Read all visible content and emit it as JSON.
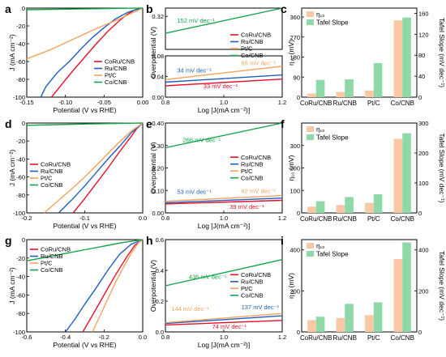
{
  "colors": {
    "CoRu/CNB": "#e8102a",
    "Ru/CNB": "#1f5fc0",
    "Pt/C": "#f3a25f",
    "Co/CNB": "#13a34a",
    "eta_bar": "#f9c9a6",
    "tafel_bar": "#8fd9a8"
  },
  "chart_data": [
    {
      "id": "a",
      "panel_label": "a",
      "type": "line",
      "xlabel": "Potential (V vs RHE)",
      "ylabel": "J (mA cm⁻²)",
      "xlim": [
        -0.15,
        0.0
      ],
      "ylim": [
        -100,
        0
      ],
      "xticks": [
        -0.15,
        -0.1,
        -0.05,
        0.0
      ],
      "xtick_labels": [
        "-0.15",
        "-0.10",
        "-0.05",
        "0.00"
      ],
      "yticks": [
        -100,
        -80,
        -60,
        -40,
        -20,
        0
      ],
      "ytick_labels": [
        "-100",
        "-80",
        "-60",
        "-40",
        "-20",
        "0"
      ],
      "legend": [
        "CoRu/CNB",
        "Ru/CNB",
        "Pt/C",
        "Co/CNB"
      ],
      "legend_position": "bottom-right",
      "series": [
        {
          "name": "CoRu/CNB",
          "x": [
            -0.118,
            -0.105,
            -0.09,
            -0.075,
            -0.06,
            -0.045,
            -0.03,
            -0.02,
            -0.01,
            0.0
          ],
          "y": [
            -100,
            -86,
            -70,
            -55,
            -40,
            -26,
            -14,
            -7,
            -2,
            0
          ]
        },
        {
          "name": "Ru/CNB",
          "x": [
            -0.132,
            -0.125,
            -0.11,
            -0.095,
            -0.08,
            -0.065,
            -0.05,
            -0.035,
            -0.02,
            -0.01,
            0.0
          ],
          "y": [
            -100,
            -88,
            -72,
            -60,
            -46,
            -33,
            -22,
            -12,
            -5,
            -2,
            0
          ]
        },
        {
          "name": "Pt/C",
          "x": [
            -0.15,
            -0.12,
            -0.09,
            -0.06,
            -0.03,
            -0.015,
            0.0
          ],
          "y": [
            -57,
            -47,
            -35,
            -23,
            -12,
            -6,
            0
          ]
        },
        {
          "name": "Co/CNB",
          "x": [
            -0.15,
            -0.1,
            -0.05,
            -0.02,
            0.0
          ],
          "y": [
            -1.8,
            -1.2,
            -0.6,
            -0.2,
            0
          ]
        }
      ]
    },
    {
      "id": "b",
      "panel_label": "b",
      "type": "line",
      "broken_axis": true,
      "xlabel": "Log [J(mA cm⁻²)]",
      "ylabel": "Overpotential (V)",
      "xlim": [
        0.8,
        1.2
      ],
      "ylim_lower": [
        0.0,
        0.08
      ],
      "ylim_upper": [
        0.24,
        0.34
      ],
      "xticks": [
        0.8,
        1.0,
        1.2
      ],
      "xtick_labels": [
        "0.8",
        "1.0",
        "1.2"
      ],
      "yticks_lower": [
        0.0,
        0.04,
        0.08
      ],
      "ytick_labels_lower": [
        "0.00",
        "0.04",
        "0.08"
      ],
      "yticks_upper": [
        0.32
      ],
      "ytick_labels_upper": [
        "0.32"
      ],
      "legend": [
        "CoRu/CNB",
        "Ru/CNB",
        "Pt/C",
        "Co/CNB"
      ],
      "legend_position": "right",
      "series": [
        {
          "name": "CoRu/CNB",
          "x": [
            0.8,
            1.2
          ],
          "y": [
            0.022,
            0.035
          ]
        },
        {
          "name": "Ru/CNB",
          "x": [
            0.8,
            1.2
          ],
          "y": [
            0.029,
            0.043
          ]
        },
        {
          "name": "Pt/C",
          "x": [
            0.8,
            1.2
          ],
          "y": [
            0.034,
            0.06
          ]
        },
        {
          "name": "Co/CNB",
          "x": [
            0.8,
            1.2
          ],
          "y": [
            0.279,
            0.34
          ]
        }
      ],
      "annotations": [
        {
          "text": "152 mV dec⁻¹",
          "series": "Co/CNB",
          "x": 0.84,
          "y": 0.305
        },
        {
          "text": "34 mV dec⁻¹",
          "series": "Ru/CNB",
          "x": 0.84,
          "y": 0.048
        },
        {
          "text": "65 mV dec⁻¹",
          "series": "Pt/C",
          "x": 1.06,
          "y": 0.062
        },
        {
          "text": "33 mV dec⁻¹",
          "series": "CoRu/CNB",
          "x": 0.93,
          "y": 0.017
        }
      ]
    },
    {
      "id": "c",
      "panel_label": "c",
      "type": "bar",
      "categories": [
        "CoRu/CNB",
        "Ru/CNB",
        "Pt/C",
        "Co/CNB"
      ],
      "ylabel": "η₁₀ (mV)",
      "y2label": "Tafel Slope (mV dec⁻¹)",
      "ylim": [
        0,
        400
      ],
      "yticks": [
        0,
        90,
        180,
        270,
        360
      ],
      "ytick_labels": [
        "0",
        "90",
        "180",
        "270",
        "360"
      ],
      "y2lim": [
        0,
        170
      ],
      "y2ticks": [
        0,
        40,
        80,
        120,
        160
      ],
      "y2tick_labels": [
        "0",
        "40",
        "80",
        "120",
        "160"
      ],
      "legend": [
        "η₁₀",
        "Tafel Slope"
      ],
      "legend_position": "top-left",
      "series": [
        {
          "name": "η₁₀",
          "axis": "left",
          "values": [
            17,
            23,
            30,
            345
          ]
        },
        {
          "name": "Tafel Slope",
          "axis": "right",
          "values": [
            33,
            34,
            65,
            152
          ]
        }
      ]
    },
    {
      "id": "d",
      "panel_label": "d",
      "type": "line",
      "xlabel": "Potential (V vs RHE)",
      "ylabel": "J (mA cm⁻²)",
      "xlim": [
        -0.2,
        0.0
      ],
      "ylim": [
        -100,
        0
      ],
      "xticks": [
        -0.2,
        -0.1,
        0.0
      ],
      "xtick_labels": [
        "-0.2",
        "-0.1",
        "0.0"
      ],
      "yticks": [
        -100,
        -80,
        -60,
        -40,
        -20,
        0
      ],
      "ytick_labels": [
        "-100",
        "-80",
        "-60",
        "-40",
        "-20",
        "0"
      ],
      "legend": [
        "CoRu/CNB",
        "Ru/CNB",
        "Pt/C",
        "Co/CNB"
      ],
      "legend_position": "bottom-left",
      "series": [
        {
          "name": "CoRu/CNB",
          "x": [
            -0.12,
            -0.1,
            -0.08,
            -0.06,
            -0.04,
            -0.02,
            -0.01,
            0.0
          ],
          "y": [
            -100,
            -84,
            -67,
            -50,
            -32,
            -15,
            -6,
            0
          ]
        },
        {
          "name": "Ru/CNB",
          "x": [
            -0.145,
            -0.12,
            -0.1,
            -0.08,
            -0.06,
            -0.04,
            -0.02,
            0.0
          ],
          "y": [
            -100,
            -84,
            -70,
            -55,
            -40,
            -26,
            -11,
            0
          ]
        },
        {
          "name": "Pt/C",
          "x": [
            -0.17,
            -0.145,
            -0.12,
            -0.1,
            -0.08,
            -0.06,
            -0.04,
            -0.02,
            0.0
          ],
          "y": [
            -100,
            -86,
            -72,
            -60,
            -47,
            -34,
            -21,
            -9,
            0
          ]
        },
        {
          "name": "Co/CNB",
          "x": [
            -0.2,
            -0.15,
            -0.1,
            -0.05,
            0.0
          ],
          "y": [
            -2.5,
            -1.8,
            -1.1,
            -0.5,
            0
          ]
        }
      ]
    },
    {
      "id": "e",
      "panel_label": "e",
      "type": "line",
      "xlabel": "Log [J(mA cm⁻²)]",
      "ylabel": "Overpotential (V)",
      "xlim": [
        0.8,
        1.2
      ],
      "ylim": [
        0.0,
        0.4
      ],
      "xticks": [
        0.8,
        1.0,
        1.2
      ],
      "xtick_labels": [
        "0.8",
        "1.0",
        "1.2"
      ],
      "yticks": [
        0.0,
        0.1,
        0.2,
        0.3,
        0.4
      ],
      "ytick_labels": [
        "0.00",
        "0.10",
        "0.20",
        "0.30",
        "0.40"
      ],
      "legend": [
        "CoRu/CNB",
        "Ru/CNB",
        "Pt/C",
        "Co/CNB"
      ],
      "legend_position": "right",
      "series": [
        {
          "name": "CoRu/CNB",
          "x": [
            0.8,
            1.2
          ],
          "y": [
            0.04,
            0.056
          ]
        },
        {
          "name": "Ru/CNB",
          "x": [
            0.8,
            1.2
          ],
          "y": [
            0.045,
            0.066
          ]
        },
        {
          "name": "Pt/C",
          "x": [
            0.8,
            1.2
          ],
          "y": [
            0.052,
            0.077
          ]
        },
        {
          "name": "Co/CNB",
          "x": [
            0.8,
            1.2
          ],
          "y": [
            0.29,
            0.4
          ]
        }
      ],
      "annotations": [
        {
          "text": "266 mV dec⁻¹",
          "series": "Co/CNB",
          "x": 0.86,
          "y": 0.315
        },
        {
          "text": "53 mV dec⁻¹",
          "series": "Ru/CNB",
          "x": 0.84,
          "y": 0.085
        },
        {
          "text": "62 mV dec⁻¹",
          "series": "Pt/C",
          "x": 1.06,
          "y": 0.088
        },
        {
          "text": "39 mV dec⁻¹",
          "series": "CoRu/CNB",
          "x": 1.02,
          "y": 0.018
        }
      ]
    },
    {
      "id": "f",
      "panel_label": "f",
      "type": "bar",
      "categories": [
        "CoRu/CNB",
        "Ru/CNB",
        "Pt/C",
        "Co/CNB"
      ],
      "ylabel": "η₁₀ (mV)",
      "y2label": "Tafel Slope (mV dec⁻¹)",
      "ylim": [
        0,
        400
      ],
      "yticks": [
        0,
        100,
        200,
        300
      ],
      "ytick_labels": [
        "0",
        "100",
        "200",
        "300"
      ],
      "y2lim": [
        0,
        300
      ],
      "y2ticks": [
        0,
        100,
        200,
        300
      ],
      "y2tick_labels": [
        "0",
        "100",
        "200",
        "300"
      ],
      "legend": [
        "η₁₀",
        "Tafel Slope"
      ],
      "legend_position": "top-left",
      "series": [
        {
          "name": "η₁₀",
          "axis": "left",
          "values": [
            28,
            35,
            45,
            330
          ]
        },
        {
          "name": "Tafel Slope",
          "axis": "right",
          "values": [
            39,
            53,
            62,
            266
          ]
        }
      ]
    },
    {
      "id": "g",
      "panel_label": "g",
      "type": "line",
      "xlabel": "Potential (V vs RHE)",
      "ylabel": "J (mA cm⁻²)",
      "xlim": [
        -0.6,
        0.0
      ],
      "ylim": [
        -100,
        0
      ],
      "xticks": [
        -0.6,
        -0.4,
        -0.2,
        0.0
      ],
      "xtick_labels": [
        "-0.6",
        "-0.4",
        "-0.2",
        "0.0"
      ],
      "yticks": [
        -100,
        -80,
        -60,
        -40,
        -20,
        0
      ],
      "ytick_labels": [
        "-100",
        "-80",
        "-60",
        "-40",
        "-20",
        "0"
      ],
      "legend": [
        "CoRu/CNB",
        "Ru/CNB",
        "Pt/C",
        "Co/CNB"
      ],
      "legend_position": "left",
      "series": [
        {
          "name": "CoRu/CNB",
          "x": [
            -0.31,
            -0.26,
            -0.2,
            -0.14,
            -0.08,
            -0.04,
            0.0
          ],
          "y": [
            -100,
            -82,
            -60,
            -38,
            -18,
            -6,
            0
          ]
        },
        {
          "name": "Ru/CNB",
          "x": [
            -0.4,
            -0.35,
            -0.3,
            -0.24,
            -0.18,
            -0.12,
            -0.06,
            0.0
          ],
          "y": [
            -100,
            -86,
            -70,
            -52,
            -33,
            -16,
            -5,
            0
          ]
        },
        {
          "name": "Pt/C",
          "x": [
            -0.26,
            -0.22,
            -0.18,
            -0.14,
            -0.1,
            -0.06,
            -0.02,
            0.0
          ],
          "y": [
            -100,
            -82,
            -64,
            -46,
            -30,
            -15,
            -3,
            0
          ]
        },
        {
          "name": "Co/CNB",
          "x": [
            -0.6,
            -0.5,
            -0.4,
            -0.3,
            -0.2,
            -0.1,
            0.0
          ],
          "y": [
            -23,
            -19,
            -15,
            -11,
            -7,
            -3,
            0
          ]
        }
      ]
    },
    {
      "id": "h",
      "panel_label": "h",
      "type": "line",
      "xlabel": "Log [J(mA cm⁻²)]",
      "ylabel": "Overpotential (V)",
      "xlim": [
        0.8,
        1.2
      ],
      "ylim": [
        0.0,
        0.6
      ],
      "xticks": [
        0.8,
        1.0,
        1.2
      ],
      "xtick_labels": [
        "0.8",
        "1.0",
        "1.2"
      ],
      "yticks": [
        0.0,
        0.2,
        0.4,
        0.6
      ],
      "ytick_labels": [
        "0.0",
        "0.2",
        "0.4",
        "0.6"
      ],
      "legend": [
        "CoRu/CNB",
        "Ru/CNB",
        "Pt/C",
        "Co/CNB"
      ],
      "legend_position": "right",
      "series": [
        {
          "name": "CoRu/CNB",
          "x": [
            0.8,
            1.2
          ],
          "y": [
            0.045,
            0.075
          ]
        },
        {
          "name": "Ru/CNB",
          "x": [
            0.8,
            1.2
          ],
          "y": [
            0.055,
            0.105
          ]
        },
        {
          "name": "Pt/C",
          "x": [
            0.8,
            1.2
          ],
          "y": [
            0.06,
            0.12
          ]
        },
        {
          "name": "Co/CNB",
          "x": [
            0.8,
            1.2
          ],
          "y": [
            0.3,
            0.47
          ]
        }
      ],
      "annotations": [
        {
          "text": "436 mV dec⁻¹",
          "series": "Co/CNB",
          "x": 0.88,
          "y": 0.345
        },
        {
          "text": "144 mV dec⁻¹",
          "series": "Pt/C",
          "x": 0.82,
          "y": 0.138
        },
        {
          "text": "137 mV dec⁻¹",
          "series": "Ru/CNB",
          "x": 1.06,
          "y": 0.148
        },
        {
          "text": "74 mV dec⁻¹",
          "series": "CoRu/CNB",
          "x": 0.96,
          "y": 0.02
        }
      ]
    },
    {
      "id": "i",
      "panel_label": "i",
      "type": "bar",
      "categories": [
        "CoRu/CNB",
        "Ru/CNB",
        "Pt/C",
        "Co/CNB"
      ],
      "ylabel": "η₁₀ (mV)",
      "y2label": "Tafel Slope (mV dec⁻¹)",
      "ylim": [
        0,
        450
      ],
      "yticks": [
        0,
        200,
        400
      ],
      "ytick_labels": [
        "0",
        "200",
        "400"
      ],
      "y2lim": [
        0,
        450
      ],
      "y2ticks": [
        0,
        200,
        400
      ],
      "y2tick_labels": [
        "0",
        "200",
        "400"
      ],
      "legend": [
        "η₁₀",
        "Tafel Slope"
      ],
      "legend_position": "top-left",
      "series": [
        {
          "name": "η₁₀",
          "axis": "left",
          "values": [
            58,
            68,
            82,
            355
          ]
        },
        {
          "name": "Tafel Slope",
          "axis": "right",
          "values": [
            74,
            137,
            144,
            436
          ]
        }
      ]
    }
  ]
}
